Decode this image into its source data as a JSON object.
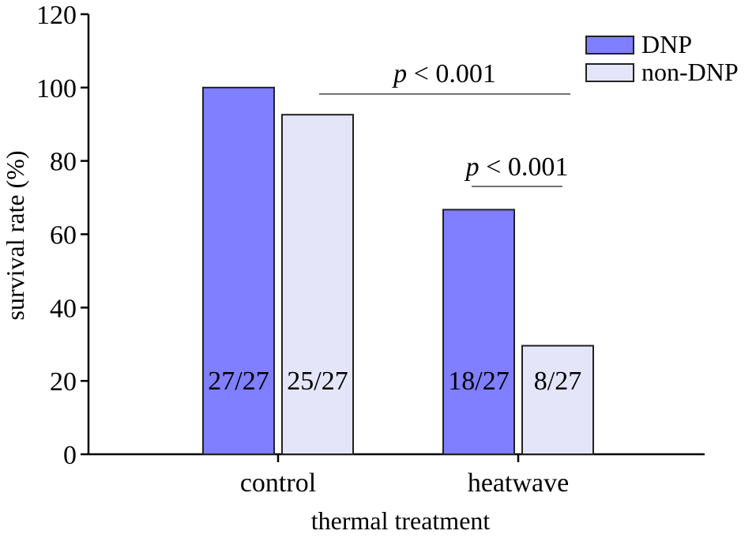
{
  "chart_data": {
    "type": "bar",
    "title": "",
    "xlabel": "thermal treatment",
    "ylabel": "survival rate (%)",
    "ylim": [
      0,
      120
    ],
    "yticks": [
      0,
      20,
      40,
      60,
      80,
      100,
      120
    ],
    "categories": [
      "control",
      "heatwave"
    ],
    "series": [
      {
        "name": "DNP",
        "color": "#7f7fff",
        "values": [
          100,
          66.7
        ],
        "labels": [
          "27/27",
          "18/27"
        ]
      },
      {
        "name": "non-DNP",
        "color": "#e5e5fa",
        "values": [
          92.6,
          29.6
        ],
        "labels": [
          "25/27",
          "8/27"
        ]
      }
    ],
    "legend_position": "top-right",
    "annotations": [
      {
        "p_symbol": "p",
        "text": " < 0.001",
        "span": "control non-DNP to heatwave non-DNP"
      },
      {
        "p_symbol": "p",
        "text": " < 0.001",
        "span": "heatwave DNP to heatwave non-DNP"
      }
    ]
  }
}
